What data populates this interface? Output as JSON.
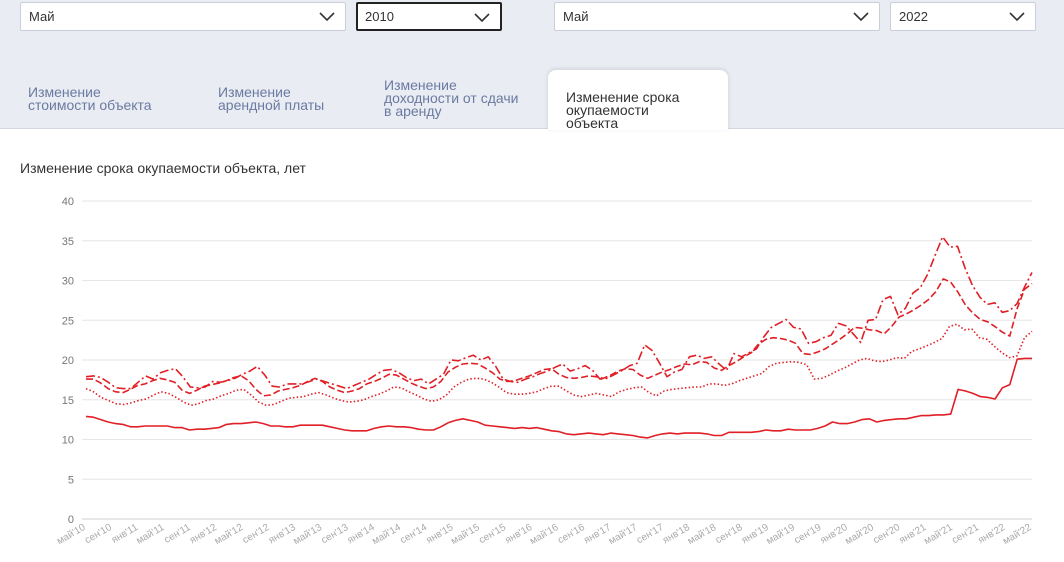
{
  "filters": {
    "start_month": "Май",
    "start_year": "2010",
    "end_month": "Май",
    "end_year": "2022"
  },
  "tabs": [
    {
      "label": "Изменение\nстоимости объекта"
    },
    {
      "label": "Изменение\nарендной платы"
    },
    {
      "label": "Изменение\nдоходности от сдачи\nв аренду"
    },
    {
      "label": "Изменение срока\nокупаемости\nобъекта"
    }
  ],
  "colors": {
    "accent": "#e01f26",
    "grid": "#e6e6e6",
    "band": "#e9ecf3"
  },
  "chart_data": {
    "type": "line",
    "title": "Изменение срока окупаемости объекта, лет",
    "ylim": [
      0,
      40
    ],
    "yticks": [
      0,
      5,
      10,
      15,
      20,
      25,
      30,
      35,
      40
    ],
    "x_labels": [
      "май'10",
      "сен'10",
      "янв'11",
      "май'11",
      "сен'11",
      "янв'12",
      "май'12",
      "сен'12",
      "янв'13",
      "май'13",
      "сен'13",
      "янв'14",
      "май'14",
      "сен'14",
      "янв'15",
      "май'15",
      "сен'15",
      "янв'16",
      "май'16",
      "сен'16",
      "янв'17",
      "май'17",
      "сен'17",
      "янв'18",
      "май'18",
      "сен'18",
      "янв'19",
      "май'19",
      "сен'19",
      "янв'20",
      "май'20",
      "сен'20",
      "янв'21",
      "май'21",
      "сен'21",
      "янв'22",
      "май'22"
    ],
    "series": [
      {
        "name": "solid",
        "style": "solid",
        "values": [
          12.9,
          12.8,
          12.5,
          12.2,
          12.0,
          11.9,
          11.6,
          11.6,
          11.7,
          11.7,
          11.7,
          11.7,
          11.5,
          11.5,
          11.2,
          11.3,
          11.3,
          11.4,
          11.5,
          11.9,
          12.0,
          12.0,
          12.1,
          12.2,
          12.0,
          11.7,
          11.7,
          11.6,
          11.6,
          11.8,
          11.8,
          11.8,
          11.8,
          11.6,
          11.4,
          11.2,
          11.1,
          11.1,
          11.1,
          11.4,
          11.6,
          11.7,
          11.6,
          11.6,
          11.5,
          11.3,
          11.2,
          11.2,
          11.6,
          12.1,
          12.4,
          12.6,
          12.4,
          12.2,
          11.8,
          11.7,
          11.6,
          11.5,
          11.4,
          11.5,
          11.4,
          11.5,
          11.3,
          11.1,
          11.0,
          10.7,
          10.6,
          10.7,
          10.8,
          10.7,
          10.6,
          10.8,
          10.7,
          10.6,
          10.5,
          10.3,
          10.2,
          10.5,
          10.7,
          10.8,
          10.7,
          10.8,
          10.8,
          10.8,
          10.7,
          10.5,
          10.5,
          10.9,
          10.9,
          10.9,
          10.9,
          11.0,
          11.2,
          11.1,
          11.1,
          11.3,
          11.2,
          11.2,
          11.2,
          11.4,
          11.7,
          12.2,
          12.0,
          12.0,
          12.2,
          12.5,
          12.6,
          12.2,
          12.4,
          12.5,
          12.6,
          12.6,
          12.8,
          13.0,
          13.0,
          13.1,
          13.1,
          13.2,
          16.3,
          16.1,
          15.8,
          15.4,
          15.3,
          15.1,
          16.5,
          16.9,
          20.1,
          20.2,
          20.2
        ]
      },
      {
        "name": "dotted",
        "style": "dotted",
        "values": [
          16.4,
          16.0,
          15.3,
          14.9,
          14.5,
          14.4,
          14.6,
          14.9,
          15.1,
          15.6,
          16.0,
          15.8,
          15.3,
          14.7,
          14.3,
          14.5,
          14.9,
          15.1,
          15.5,
          15.8,
          16.2,
          16.3,
          15.6,
          14.7,
          14.3,
          14.4,
          14.8,
          15.2,
          15.3,
          15.4,
          15.7,
          15.9,
          15.6,
          15.2,
          14.9,
          14.7,
          14.8,
          15.0,
          15.4,
          15.7,
          16.1,
          16.6,
          16.5,
          16.0,
          15.6,
          15.1,
          14.8,
          15.0,
          15.6,
          16.6,
          17.2,
          17.6,
          17.7,
          17.6,
          17.2,
          16.6,
          15.9,
          15.7,
          15.7,
          15.8,
          16.0,
          16.4,
          16.7,
          16.7,
          16.1,
          15.6,
          15.4,
          15.6,
          15.8,
          15.6,
          15.4,
          16.0,
          16.3,
          16.5,
          16.6,
          15.9,
          15.5,
          16.1,
          16.3,
          16.4,
          16.5,
          16.6,
          16.6,
          17.0,
          17.0,
          16.8,
          17.0,
          17.4,
          17.7,
          18.0,
          18.3,
          19.2,
          19.6,
          19.7,
          19.8,
          19.7,
          19.4,
          17.6,
          17.7,
          18.1,
          18.6,
          19.0,
          19.5,
          20.0,
          20.2,
          19.9,
          19.8,
          20.0,
          20.3,
          20.2,
          21.1,
          21.4,
          21.8,
          22.2,
          22.7,
          24.2,
          24.5,
          23.8,
          23.9,
          22.8,
          22.6,
          21.7,
          20.9,
          20.3,
          20.5,
          22.8,
          23.6
        ]
      },
      {
        "name": "dashed",
        "style": "dashed",
        "values": [
          17.6,
          17.6,
          17.1,
          16.4,
          16.0,
          15.9,
          16.3,
          16.8,
          17.0,
          17.4,
          17.7,
          17.5,
          17.2,
          16.2,
          15.8,
          16.2,
          16.7,
          16.9,
          17.1,
          17.4,
          17.8,
          18.0,
          17.4,
          16.3,
          15.5,
          15.6,
          16.1,
          16.3,
          16.5,
          16.8,
          17.3,
          17.7,
          17.3,
          16.6,
          16.2,
          15.9,
          16.1,
          16.4,
          17.0,
          17.3,
          17.7,
          18.2,
          18.1,
          17.6,
          17.1,
          16.7,
          16.4,
          16.6,
          17.3,
          18.5,
          19.1,
          19.5,
          19.6,
          19.5,
          19.0,
          18.4,
          17.6,
          17.3,
          17.4,
          17.7,
          18.0,
          18.4,
          18.8,
          18.9,
          18.2,
          17.8,
          17.7,
          17.8,
          18.0,
          17.9,
          17.7,
          18.1,
          18.6,
          18.9,
          18.8,
          18.1,
          17.7,
          18.1,
          18.5,
          18.8,
          19.2,
          19.5,
          19.4,
          19.8,
          19.7,
          19.0,
          18.7,
          19.3,
          19.8,
          20.4,
          20.9,
          22.0,
          22.6,
          22.8,
          22.7,
          22.5,
          22.1,
          20.8,
          20.7,
          21.0,
          21.4,
          22.0,
          22.6,
          23.3,
          24.1,
          24.0,
          23.8,
          23.7,
          23.3,
          24.2,
          25.4,
          25.8,
          26.3,
          26.9,
          27.6,
          28.6,
          30.2,
          29.8,
          28.5,
          26.9,
          25.9,
          25.1,
          24.8,
          24.2,
          23.5,
          23.0,
          26.5,
          28.9,
          29.6
        ]
      },
      {
        "name": "dashdot",
        "style": "dashdot",
        "values": [
          17.9,
          18.0,
          17.8,
          17.2,
          16.5,
          16.4,
          16.4,
          17.2,
          18.0,
          17.6,
          18.4,
          18.7,
          18.9,
          17.9,
          16.6,
          16.5,
          16.6,
          17.3,
          17.2,
          17.4,
          17.7,
          18.2,
          18.6,
          19.2,
          18.1,
          16.7,
          16.6,
          17.0,
          17.0,
          17.0,
          17.3,
          17.6,
          17.3,
          17.0,
          16.7,
          16.4,
          16.8,
          17.2,
          17.6,
          18.2,
          18.7,
          18.8,
          18.4,
          17.8,
          17.4,
          17.6,
          17.0,
          17.6,
          18.2,
          20.0,
          19.9,
          20.3,
          20.6,
          20.0,
          20.4,
          19.2,
          17.6,
          17.3,
          17.2,
          17.6,
          17.9,
          18.3,
          18.6,
          19.1,
          19.5,
          18.6,
          18.9,
          19.3,
          18.7,
          17.6,
          17.7,
          18.2,
          18.7,
          19.3,
          19.6,
          21.9,
          21.2,
          19.6,
          17.9,
          18.5,
          18.8,
          20.4,
          20.6,
          20.2,
          20.4,
          19.5,
          18.7,
          20.8,
          20.4,
          20.9,
          21.4,
          22.9,
          24.1,
          24.6,
          25.1,
          24.1,
          23.9,
          22.1,
          22.3,
          22.8,
          23.1,
          24.6,
          24.3,
          23.3,
          22.2,
          25.0,
          25.1,
          27.6,
          28.0,
          25.7,
          26.5,
          28.4,
          29.1,
          30.8,
          33.2,
          35.5,
          34.2,
          34.3,
          31.6,
          29.4,
          27.9,
          27.0,
          27.2,
          26.0,
          26.2,
          27.1,
          29.2,
          31.0
        ]
      }
    ]
  }
}
